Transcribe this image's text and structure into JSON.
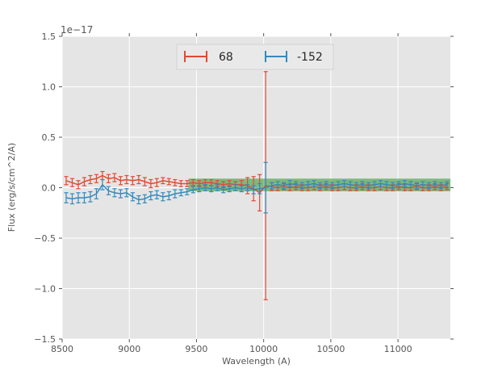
{
  "figure": {
    "background": "#ffffff",
    "axes_background": "#e5e5e5",
    "grid_color": "#ffffff",
    "tick_color": "#555555",
    "label_color": "#555555",
    "legend_text_color": "#262626",
    "legend_facecolor": "#e9e9e9",
    "legend_edgecolor": "#d4d4d4",
    "offset_text": "1e−17"
  },
  "chart_data": {
    "type": "line",
    "subtype": "errorbar-spectrum",
    "title": "",
    "xlabel": "Wavelength (A)",
    "ylabel": "Flux (erg/s/cm^2/A)",
    "xlim": [
      8500,
      11390
    ],
    "ylim": [
      -1.5,
      1.5
    ],
    "y_units": "1e-17 erg/s/cm^2/A",
    "grid": true,
    "legend_position": "upper center",
    "xticks": [
      8500,
      9000,
      9500,
      10000,
      10500,
      11000
    ],
    "xtick_labels": [
      "8500",
      "9000",
      "9500",
      "10000",
      "10500",
      "11000"
    ],
    "ytick_values": [
      -1.5,
      -1.0,
      -0.5,
      0.0,
      0.5,
      1.0,
      1.5
    ],
    "ytick_labels": [
      "−1.5",
      "−1.0",
      "−0.5",
      "0.0",
      "0.5",
      "1.0",
      "1.5"
    ],
    "band": {
      "x0": 9440,
      "x1": 11390,
      "y0": -0.035,
      "y1": 0.09,
      "color": "#008000",
      "opacity": 0.45
    },
    "x": [
      8530,
      8575,
      8620,
      8665,
      8710,
      8755,
      8800,
      8845,
      8890,
      8935,
      8980,
      9025,
      9070,
      9115,
      9160,
      9205,
      9250,
      9295,
      9340,
      9385,
      9430,
      9475,
      9520,
      9565,
      9610,
      9655,
      9700,
      9745,
      9790,
      9835,
      9880,
      9925,
      9970,
      10015,
      10060,
      10105,
      10150,
      10195,
      10240,
      10285,
      10330,
      10375,
      10420,
      10465,
      10510,
      10555,
      10600,
      10645,
      10690,
      10735,
      10780,
      10825,
      10870,
      10915,
      10960,
      11005,
      11050,
      11095,
      11140,
      11185,
      11230,
      11275,
      11320,
      11365
    ],
    "series": [
      {
        "name": "68",
        "color": "#e24a33",
        "y": [
          0.07,
          0.05,
          0.03,
          0.06,
          0.08,
          0.09,
          0.12,
          0.09,
          0.1,
          0.07,
          0.08,
          0.07,
          0.08,
          0.06,
          0.04,
          0.05,
          0.07,
          0.06,
          0.05,
          0.04,
          0.04,
          0.05,
          0.04,
          0.05,
          0.05,
          0.04,
          0.03,
          0.04,
          0.03,
          0.03,
          0.02,
          -0.01,
          -0.05,
          0.02,
          0.01,
          0.0,
          0.01,
          0.0,
          0.01,
          0.0,
          0.0,
          0.01,
          0.0,
          0.01,
          0.0,
          0.0,
          0.01,
          0.0,
          0.0,
          0.01,
          0.0,
          0.0,
          0.01,
          0.0,
          0.0,
          0.01,
          0.0,
          0.0,
          0.01,
          0.0,
          0.0,
          0.01,
          0.0,
          0.01
        ],
        "yerr": [
          0.04,
          0.04,
          0.04,
          0.04,
          0.04,
          0.04,
          0.04,
          0.04,
          0.04,
          0.04,
          0.04,
          0.04,
          0.04,
          0.04,
          0.04,
          0.04,
          0.03,
          0.03,
          0.03,
          0.03,
          0.03,
          0.03,
          0.03,
          0.03,
          0.03,
          0.03,
          0.03,
          0.03,
          0.03,
          0.04,
          0.08,
          0.12,
          0.18,
          1.13,
          0.04,
          0.03,
          0.03,
          0.03,
          0.03,
          0.03,
          0.03,
          0.03,
          0.03,
          0.03,
          0.03,
          0.03,
          0.03,
          0.03,
          0.03,
          0.03,
          0.03,
          0.03,
          0.03,
          0.03,
          0.03,
          0.03,
          0.03,
          0.03,
          0.03,
          0.03,
          0.03,
          0.03,
          0.03,
          0.03
        ]
      },
      {
        "name": "-152",
        "color": "#348abd",
        "y": [
          -0.1,
          -0.11,
          -0.1,
          -0.1,
          -0.09,
          -0.06,
          0.03,
          -0.03,
          -0.05,
          -0.06,
          -0.05,
          -0.09,
          -0.12,
          -0.11,
          -0.08,
          -0.07,
          -0.09,
          -0.08,
          -0.06,
          -0.05,
          -0.04,
          -0.02,
          -0.01,
          0.0,
          -0.01,
          0.0,
          -0.02,
          -0.01,
          0.0,
          -0.01,
          0.0,
          -0.02,
          -0.01,
          0.0,
          0.02,
          0.03,
          0.02,
          0.04,
          0.03,
          0.02,
          0.03,
          0.04,
          0.02,
          0.03,
          0.02,
          0.03,
          0.04,
          0.03,
          0.02,
          0.03,
          0.02,
          0.03,
          0.04,
          0.03,
          0.02,
          0.03,
          0.04,
          0.03,
          0.02,
          0.03,
          0.02,
          0.03,
          0.02,
          0.03
        ],
        "yerr": [
          0.05,
          0.05,
          0.05,
          0.05,
          0.05,
          0.05,
          0.05,
          0.04,
          0.04,
          0.04,
          0.04,
          0.04,
          0.04,
          0.04,
          0.04,
          0.04,
          0.04,
          0.04,
          0.04,
          0.03,
          0.03,
          0.03,
          0.03,
          0.03,
          0.03,
          0.03,
          0.03,
          0.03,
          0.03,
          0.03,
          0.03,
          0.04,
          0.05,
          0.25,
          0.03,
          0.03,
          0.03,
          0.03,
          0.03,
          0.03,
          0.03,
          0.03,
          0.03,
          0.03,
          0.03,
          0.03,
          0.03,
          0.03,
          0.03,
          0.03,
          0.03,
          0.03,
          0.03,
          0.03,
          0.03,
          0.03,
          0.03,
          0.03,
          0.03,
          0.03,
          0.03,
          0.03,
          0.03,
          0.03
        ]
      }
    ]
  }
}
